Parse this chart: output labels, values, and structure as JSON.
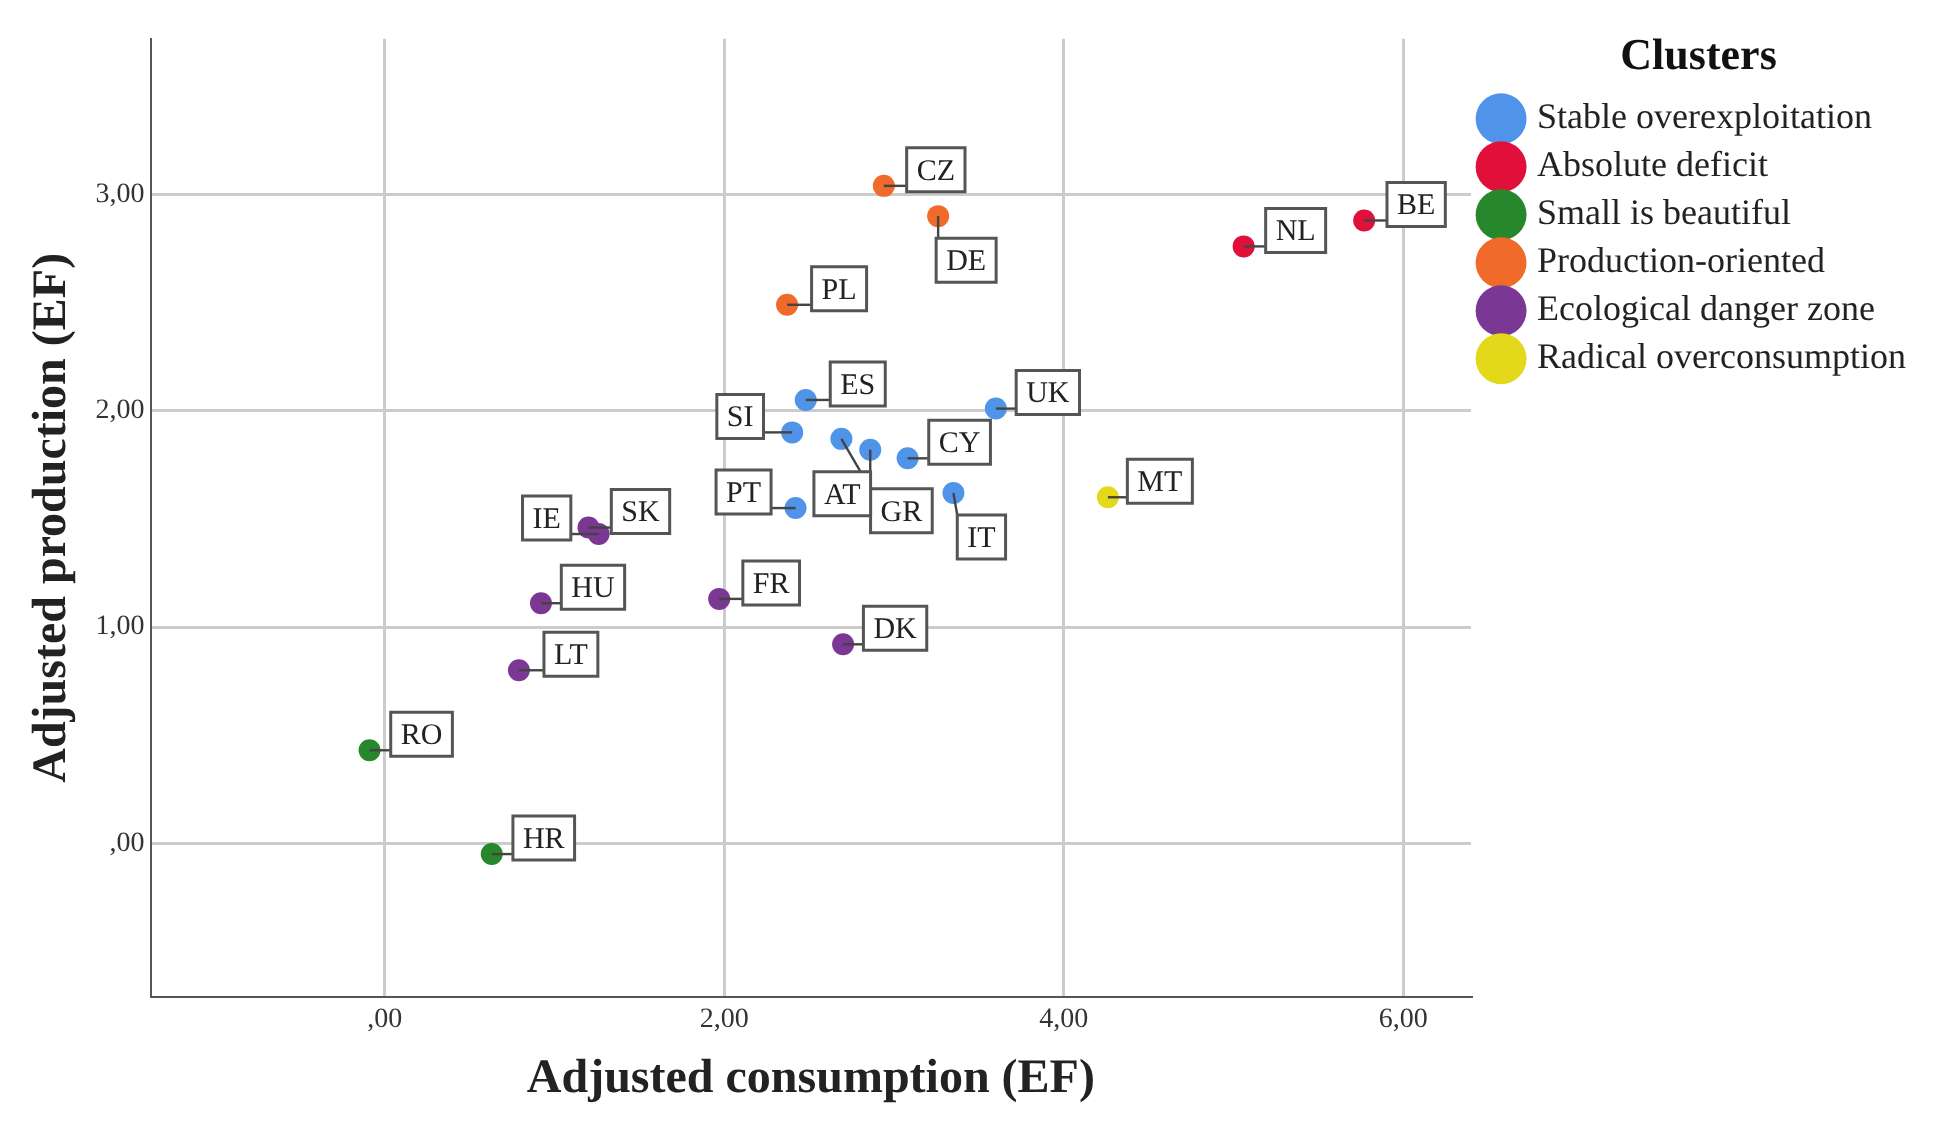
{
  "chart_data": {
    "type": "scatter",
    "xlabel": "Adjusted consumption (EF)",
    "ylabel": "Adjusted production (EF)",
    "legend_title": "Clusters",
    "legend": "right",
    "grid": true,
    "marker": "circle",
    "xlim": [
      -1.38,
      6.4
    ],
    "ylim": [
      -0.71,
      3.72
    ],
    "xticks": [
      {
        "value": 0,
        "label": ",00"
      },
      {
        "value": 2,
        "label": "2,00"
      },
      {
        "value": 4,
        "label": "4,00"
      },
      {
        "value": 6,
        "label": "6,00"
      }
    ],
    "yticks": [
      {
        "value": 0,
        "label": ",00"
      },
      {
        "value": 1,
        "label": "1,00"
      },
      {
        "value": 2,
        "label": "2,00"
      },
      {
        "value": 3,
        "label": "3,00"
      }
    ],
    "series": [
      {
        "name": "Stable overexploitation",
        "color": "#4f94e8",
        "x": [
          2.48,
          2.4,
          2.69,
          2.86,
          3.08,
          3.6,
          3.35,
          2.42
        ],
        "values": [
          2.05,
          1.9,
          1.87,
          1.82,
          1.78,
          2.01,
          1.62,
          1.55
        ]
      },
      {
        "name": "Absolute deficit",
        "color": "#e0103a",
        "x": [
          5.06,
          5.77
        ],
        "values": [
          2.76,
          2.88
        ]
      },
      {
        "name": "Small is beautiful",
        "color": "#26872c",
        "x": [
          -0.09,
          0.63
        ],
        "values": [
          0.43,
          -0.05
        ]
      },
      {
        "name": "Production-oriented",
        "color": "#f06a2a",
        "x": [
          2.94,
          3.26,
          2.37
        ],
        "values": [
          3.04,
          2.9,
          2.49
        ]
      },
      {
        "name": "Ecological danger zone",
        "color": "#7a3794",
        "x": [
          1.2,
          1.26,
          0.92,
          1.97,
          2.7,
          0.79
        ],
        "values": [
          1.46,
          1.43,
          1.11,
          1.13,
          0.92,
          0.8
        ]
      },
      {
        "name": "Radical overconsumption",
        "color": "#e3d81a",
        "x": [
          4.26
        ],
        "values": [
          1.6
        ]
      }
    ],
    "annotations": [
      {
        "text": "ES",
        "x": 2.48,
        "y": 2.05
      },
      {
        "text": "SI",
        "x": 2.4,
        "y": 1.9
      },
      {
        "text": "GR",
        "x": 2.69,
        "y": 1.87
      },
      {
        "text": "AT",
        "x": 2.86,
        "y": 1.82
      },
      {
        "text": "CY",
        "x": 3.08,
        "y": 1.78
      },
      {
        "text": "UK",
        "x": 3.6,
        "y": 2.01
      },
      {
        "text": "IT",
        "x": 3.35,
        "y": 1.62
      },
      {
        "text": "PT",
        "x": 2.42,
        "y": 1.55
      },
      {
        "text": "NL",
        "x": 5.06,
        "y": 2.76
      },
      {
        "text": "BE",
        "x": 5.77,
        "y": 2.88
      },
      {
        "text": "RO",
        "x": -0.09,
        "y": 0.43
      },
      {
        "text": "HR",
        "x": 0.63,
        "y": -0.05
      },
      {
        "text": "CZ",
        "x": 2.94,
        "y": 3.04
      },
      {
        "text": "DE",
        "x": 3.26,
        "y": 2.9
      },
      {
        "text": "PL",
        "x": 2.37,
        "y": 2.49
      },
      {
        "text": "SK",
        "x": 1.2,
        "y": 1.46
      },
      {
        "text": "IE",
        "x": 1.26,
        "y": 1.43
      },
      {
        "text": "HU",
        "x": 0.92,
        "y": 1.11
      },
      {
        "text": "FR",
        "x": 1.97,
        "y": 1.13
      },
      {
        "text": "DK",
        "x": 2.7,
        "y": 0.92
      },
      {
        "text": "LT",
        "x": 0.79,
        "y": 0.8
      },
      {
        "text": "MT",
        "x": 4.26,
        "y": 1.6
      }
    ]
  }
}
